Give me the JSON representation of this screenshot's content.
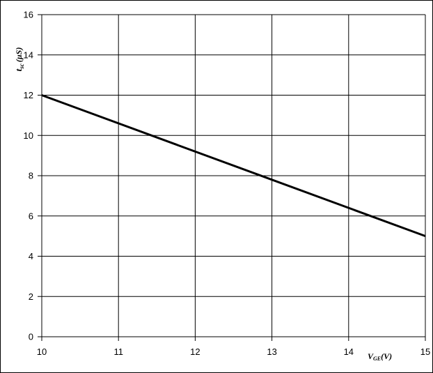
{
  "chart_data": {
    "type": "line",
    "title": "",
    "xlabel": {
      "main": "V",
      "sub": "GE",
      "unit": "(V)"
    },
    "ylabel": {
      "main": "t",
      "sub": "sc",
      "unit": "(µS)"
    },
    "xlim": [
      10,
      15
    ],
    "ylim": [
      0,
      16
    ],
    "x_ticks": [
      "10",
      "11",
      "12",
      "13",
      "14",
      "15"
    ],
    "y_ticks": [
      "0",
      "2",
      "4",
      "6",
      "8",
      "10",
      "12",
      "14",
      "16"
    ],
    "grid": true,
    "series": [
      {
        "x": [
          10,
          15
        ],
        "y": [
          12,
          5
        ],
        "color": "#000000"
      }
    ]
  }
}
